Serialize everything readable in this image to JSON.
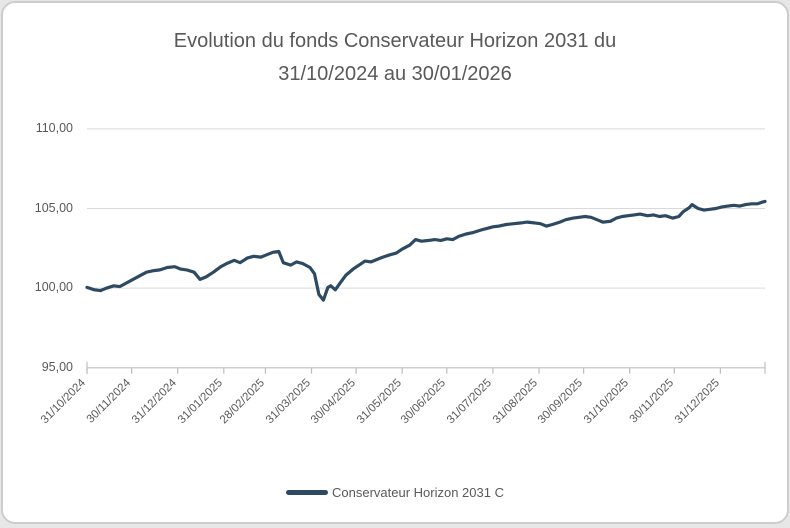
{
  "header": {
    "title_line1": "Evolution du fonds Conservateur Horizon 2031 du",
    "title_line2": "31/10/2024 au 30/01/2026"
  },
  "legend": {
    "label": "Conservateur Horizon 2031 C"
  },
  "colors": {
    "line": "#2E4A62",
    "grid": "#D9D9D9",
    "axis": "#BFBFBF",
    "text": "#595959",
    "card_border": "#CDCDCD",
    "card_bg": "#FFFFFF",
    "page_bg": "#E7E7E7"
  },
  "chart_data": {
    "type": "line",
    "title": "Evolution du fonds Conservateur Horizon 2031 du 31/10/2024 au 30/01/2026",
    "xlabel": "",
    "ylabel": "",
    "grid": true,
    "legend_position": "bottom",
    "y_axis": {
      "min": 95,
      "max": 110,
      "ticks": [
        {
          "label": "110,00",
          "v": 110
        },
        {
          "label": "105,00",
          "v": 105
        },
        {
          "label": "100,00",
          "v": 100
        },
        {
          "label": "95,00",
          "v": 95
        }
      ]
    },
    "x_axis": {
      "start_date": "31/10/2024",
      "end_date": "30/01/2026",
      "total_days": 456,
      "ticks": [
        {
          "label": "31/10/2024",
          "t": 0
        },
        {
          "label": "30/11/2024",
          "t": 30
        },
        {
          "label": "31/12/2024",
          "t": 61
        },
        {
          "label": "31/01/2025",
          "t": 92
        },
        {
          "label": "28/02/2025",
          "t": 120
        },
        {
          "label": "31/03/2025",
          "t": 151
        },
        {
          "label": "30/04/2025",
          "t": 181
        },
        {
          "label": "31/05/2025",
          "t": 212
        },
        {
          "label": "30/06/2025",
          "t": 242
        },
        {
          "label": "31/07/2025",
          "t": 273
        },
        {
          "label": "31/08/2025",
          "t": 304
        },
        {
          "label": "30/09/2025",
          "t": 334
        },
        {
          "label": "31/10/2025",
          "t": 365
        },
        {
          "label": "30/11/2025",
          "t": 395
        },
        {
          "label": "31/12/2025",
          "t": 426
        }
      ]
    },
    "series": [
      {
        "name": "Conservateur Horizon 2031 C",
        "color": "#2E4A62",
        "points": [
          [
            0,
            100.05
          ],
          [
            5,
            99.9
          ],
          [
            9,
            99.85
          ],
          [
            13,
            100.0
          ],
          [
            18,
            100.15
          ],
          [
            22,
            100.1
          ],
          [
            27,
            100.35
          ],
          [
            30,
            100.5
          ],
          [
            35,
            100.75
          ],
          [
            40,
            101.0
          ],
          [
            45,
            101.1
          ],
          [
            49,
            101.15
          ],
          [
            54,
            101.3
          ],
          [
            59,
            101.35
          ],
          [
            63,
            101.2
          ],
          [
            67,
            101.15
          ],
          [
            72,
            101.0
          ],
          [
            76,
            100.55
          ],
          [
            80,
            100.7
          ],
          [
            85,
            101.0
          ],
          [
            90,
            101.35
          ],
          [
            94,
            101.55
          ],
          [
            99,
            101.75
          ],
          [
            103,
            101.6
          ],
          [
            108,
            101.9
          ],
          [
            112,
            102.0
          ],
          [
            117,
            101.95
          ],
          [
            121,
            102.1
          ],
          [
            125,
            102.25
          ],
          [
            129,
            102.3
          ],
          [
            132,
            101.6
          ],
          [
            137,
            101.45
          ],
          [
            141,
            101.65
          ],
          [
            145,
            101.55
          ],
          [
            150,
            101.3
          ],
          [
            153,
            100.9
          ],
          [
            156,
            99.6
          ],
          [
            159,
            99.25
          ],
          [
            162,
            100.05
          ],
          [
            164,
            100.15
          ],
          [
            167,
            99.9
          ],
          [
            170,
            100.3
          ],
          [
            174,
            100.8
          ],
          [
            179,
            101.2
          ],
          [
            183,
            101.45
          ],
          [
            187,
            101.7
          ],
          [
            191,
            101.65
          ],
          [
            195,
            101.8
          ],
          [
            199,
            101.95
          ],
          [
            204,
            102.1
          ],
          [
            208,
            102.2
          ],
          [
            212,
            102.45
          ],
          [
            217,
            102.7
          ],
          [
            221,
            103.05
          ],
          [
            225,
            102.95
          ],
          [
            230,
            103.0
          ],
          [
            234,
            103.05
          ],
          [
            238,
            103.0
          ],
          [
            242,
            103.1
          ],
          [
            246,
            103.05
          ],
          [
            250,
            103.25
          ],
          [
            255,
            103.4
          ],
          [
            260,
            103.5
          ],
          [
            265,
            103.65
          ],
          [
            269,
            103.75
          ],
          [
            273,
            103.85
          ],
          [
            277,
            103.9
          ],
          [
            282,
            104.0
          ],
          [
            287,
            104.05
          ],
          [
            292,
            104.1
          ],
          [
            296,
            104.15
          ],
          [
            301,
            104.1
          ],
          [
            305,
            104.05
          ],
          [
            309,
            103.9
          ],
          [
            313,
            104.0
          ],
          [
            318,
            104.15
          ],
          [
            322,
            104.3
          ],
          [
            327,
            104.4
          ],
          [
            331,
            104.45
          ],
          [
            335,
            104.5
          ],
          [
            339,
            104.45
          ],
          [
            343,
            104.3
          ],
          [
            347,
            104.15
          ],
          [
            352,
            104.2
          ],
          [
            356,
            104.4
          ],
          [
            360,
            104.5
          ],
          [
            364,
            104.55
          ],
          [
            368,
            104.6
          ],
          [
            372,
            104.65
          ],
          [
            377,
            104.55
          ],
          [
            381,
            104.6
          ],
          [
            385,
            104.5
          ],
          [
            389,
            104.55
          ],
          [
            394,
            104.4
          ],
          [
            398,
            104.5
          ],
          [
            401,
            104.8
          ],
          [
            405,
            105.05
          ],
          [
            407,
            105.25
          ],
          [
            411,
            105.0
          ],
          [
            415,
            104.9
          ],
          [
            419,
            104.95
          ],
          [
            423,
            105.0
          ],
          [
            427,
            105.1
          ],
          [
            431,
            105.15
          ],
          [
            435,
            105.2
          ],
          [
            439,
            105.15
          ],
          [
            443,
            105.25
          ],
          [
            447,
            105.3
          ],
          [
            451,
            105.3
          ],
          [
            454,
            105.4
          ],
          [
            456,
            105.45
          ]
        ]
      }
    ]
  }
}
